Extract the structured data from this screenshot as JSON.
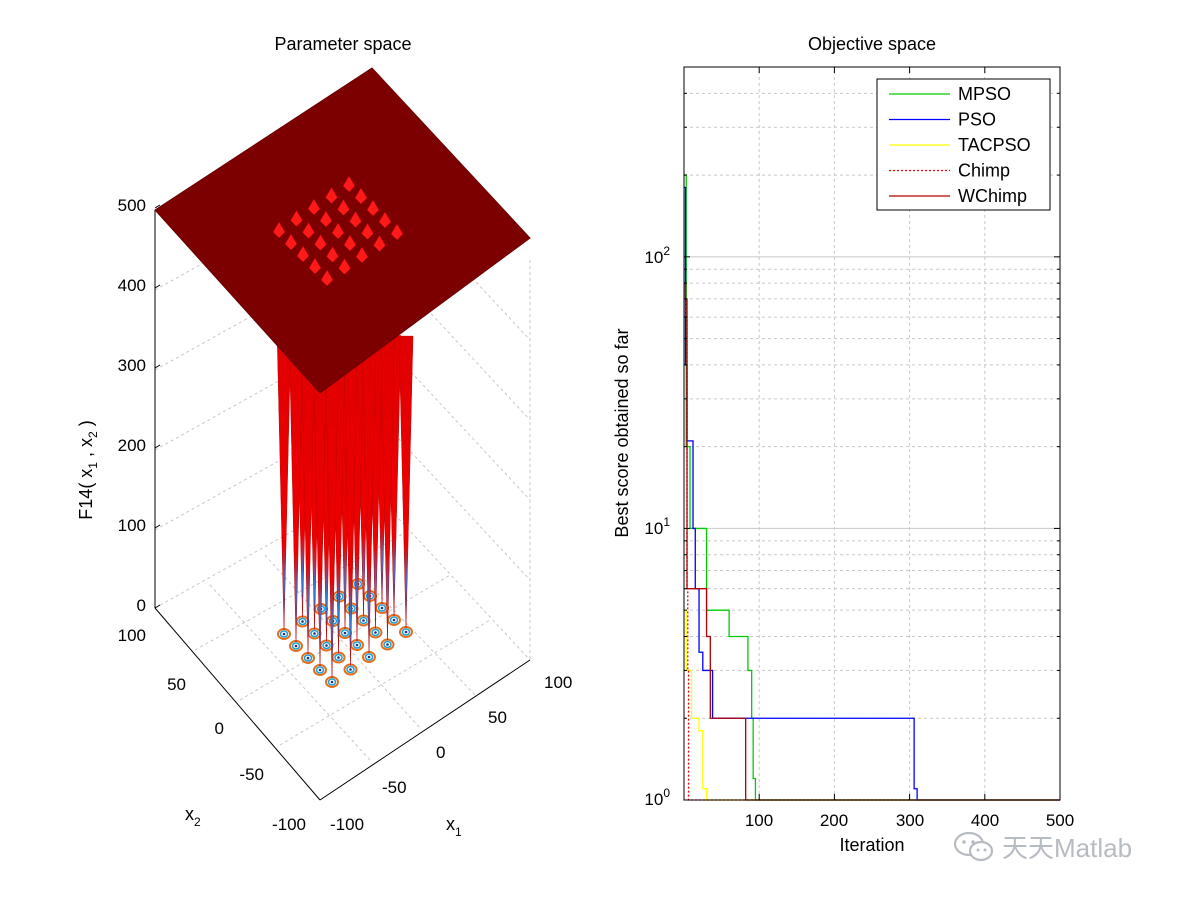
{
  "left_panel": {
    "title": "Parameter space",
    "zlabel_main": "F14( x",
    "zlabel_sub1": "1",
    "zlabel_mid": " , x",
    "zlabel_sub2": "2",
    "zlabel_end": " )",
    "x1_label": "x",
    "x1_sub": "1",
    "x2_label": "x",
    "x2_sub": "2",
    "z_ticks": [
      "0",
      "100",
      "200",
      "300",
      "400",
      "500"
    ],
    "x1_ticks": [
      "-100",
      "-50",
      "0",
      "50",
      "100"
    ],
    "x2_ticks": [
      "-100",
      "-50",
      "0",
      "50",
      "100"
    ]
  },
  "chart_data": {
    "type": "line",
    "title": "Objective space",
    "xlabel": "Iteration",
    "ylabel": "Best score obtained so far",
    "xlim": [
      0,
      500
    ],
    "ylim": [
      1,
      500
    ],
    "yscale": "log",
    "x_ticks": [
      "100",
      "200",
      "300",
      "400",
      "500"
    ],
    "y_ticks": [
      {
        "base": "10",
        "exp": "0"
      },
      {
        "base": "10",
        "exp": "1"
      },
      {
        "base": "10",
        "exp": "2"
      }
    ],
    "legend_position": "top-right",
    "series": [
      {
        "name": "MPSO",
        "color": "#00cc00",
        "style": "solid",
        "points": [
          [
            0,
            200
          ],
          [
            3,
            20
          ],
          [
            8,
            10
          ],
          [
            25,
            10
          ],
          [
            30,
            5
          ],
          [
            55,
            5
          ],
          [
            60,
            4
          ],
          [
            80,
            4
          ],
          [
            85,
            3
          ],
          [
            90,
            2
          ],
          [
            92,
            1.2
          ],
          [
            95,
            1
          ],
          [
            500,
            1
          ]
        ]
      },
      {
        "name": "PSO",
        "color": "#0000ff",
        "style": "solid",
        "points": [
          [
            0,
            180
          ],
          [
            2,
            40
          ],
          [
            4,
            21
          ],
          [
            10,
            21
          ],
          [
            12,
            10
          ],
          [
            15,
            6
          ],
          [
            20,
            3.5
          ],
          [
            25,
            3
          ],
          [
            35,
            3
          ],
          [
            38,
            2
          ],
          [
            305,
            2
          ],
          [
            306,
            1.1
          ],
          [
            310,
            1
          ],
          [
            500,
            1
          ]
        ]
      },
      {
        "name": "TACPSO",
        "color": "#ffff00",
        "style": "solid",
        "points": [
          [
            0,
            5
          ],
          [
            3,
            3
          ],
          [
            10,
            2
          ],
          [
            20,
            1.8
          ],
          [
            25,
            1.1
          ],
          [
            30,
            1
          ],
          [
            500,
            1
          ]
        ]
      },
      {
        "name": "Chimp",
        "color": "#ff0000",
        "style": "dotted",
        "points": [
          [
            0,
            80
          ],
          [
            2,
            60
          ],
          [
            4,
            6
          ],
          [
            5,
            3
          ],
          [
            6,
            1
          ],
          [
            500,
            1
          ]
        ]
      },
      {
        "name": "WChimp",
        "color": "#b00000",
        "style": "solid",
        "points": [
          [
            0,
            80
          ],
          [
            2,
            70
          ],
          [
            4,
            6
          ],
          [
            25,
            6
          ],
          [
            30,
            4
          ],
          [
            35,
            2
          ],
          [
            80,
            2
          ],
          [
            82,
            1
          ],
          [
            500,
            1
          ]
        ]
      }
    ]
  },
  "watermark": {
    "text": "天天Matlab"
  }
}
